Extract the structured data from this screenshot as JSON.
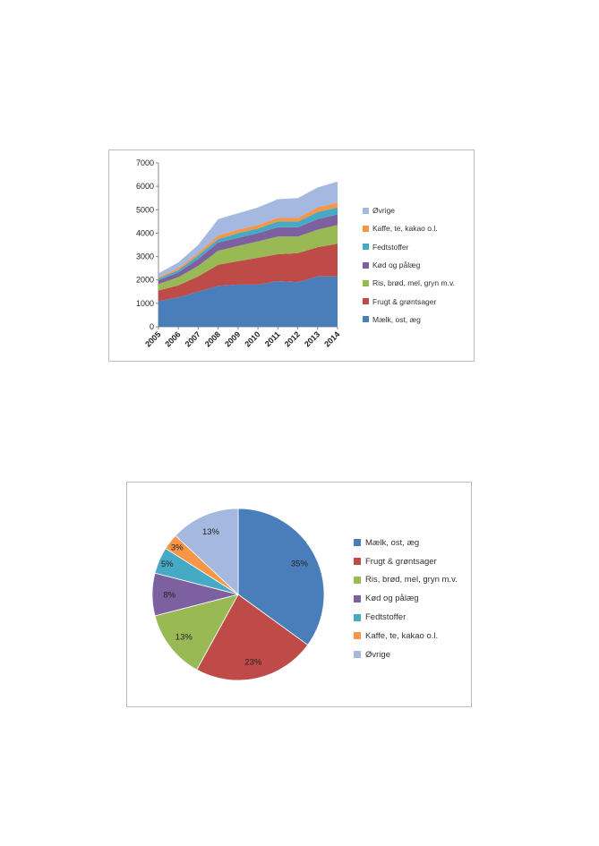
{
  "charts": [
    {
      "type": "area",
      "stacked": true,
      "x": [
        "2005",
        "2006",
        "2007",
        "2008",
        "2009",
        "2010",
        "2011",
        "2012",
        "2013",
        "2014"
      ],
      "ylim": [
        0,
        7000
      ],
      "yticks": [
        0,
        1000,
        2000,
        3000,
        4000,
        5000,
        6000,
        7000
      ],
      "grid": false,
      "legend_position": "right",
      "series": [
        {
          "name": "Mælk, ost, æg",
          "color": "#4a7ebb",
          "values": [
            1100,
            1250,
            1500,
            1750,
            1800,
            1800,
            1950,
            1900,
            2150,
            2150
          ]
        },
        {
          "name": "Frugt & grøntsager",
          "color": "#be4b48",
          "values": [
            450,
            520,
            650,
            900,
            1000,
            1150,
            1150,
            1250,
            1250,
            1400
          ]
        },
        {
          "name": "Ris, brød, mel, gryn m.v.",
          "color": "#98b954",
          "values": [
            280,
            350,
            450,
            600,
            650,
            700,
            750,
            700,
            750,
            800
          ]
        },
        {
          "name": "Kød og pålæg",
          "color": "#7d60a0",
          "values": [
            150,
            200,
            300,
            350,
            350,
            350,
            400,
            400,
            450,
            450
          ]
        },
        {
          "name": "Fedtstoffer",
          "color": "#46aac5",
          "values": [
            80,
            100,
            150,
            150,
            200,
            200,
            250,
            250,
            300,
            300
          ]
        },
        {
          "name": "Kaffe, te, kakao o.l.",
          "color": "#f79646",
          "values": [
            50,
            80,
            100,
            150,
            150,
            150,
            150,
            150,
            200,
            200
          ]
        },
        {
          "name": "Øvrige",
          "color": "#a5b8e0",
          "values": [
            170,
            250,
            350,
            700,
            700,
            750,
            800,
            850,
            850,
            900
          ]
        }
      ]
    },
    {
      "type": "pie",
      "legend_position": "right",
      "slices": [
        {
          "name": "Mælk, ost, æg",
          "color": "#4a7ebb",
          "value": 35,
          "label": "35%"
        },
        {
          "name": "Frugt & grøntsager",
          "color": "#be4b48",
          "value": 23,
          "label": "23%"
        },
        {
          "name": "Ris, brød, mel, gryn m.v.",
          "color": "#98b954",
          "value": 13,
          "label": "13%"
        },
        {
          "name": "Kød og pålæg",
          "color": "#7d60a0",
          "value": 8,
          "label": "8%"
        },
        {
          "name": "Fedtstoffer",
          "color": "#46aac5",
          "value": 5,
          "label": "5%"
        },
        {
          "name": "Kaffe, te, kakao o.l.",
          "color": "#f79646",
          "value": 3,
          "label": "3%"
        },
        {
          "name": "Øvrige",
          "color": "#a5b8e0",
          "value": 13,
          "label": "13%"
        }
      ]
    }
  ]
}
